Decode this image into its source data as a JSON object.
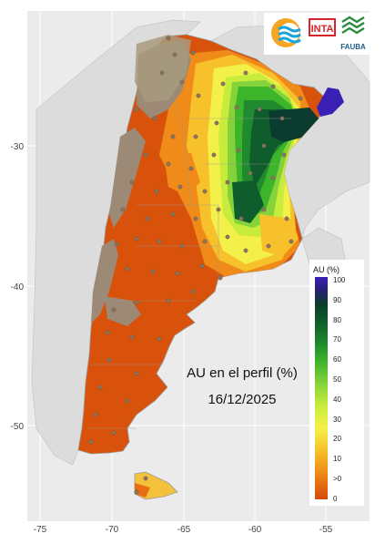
{
  "title": "AU en el perfil (%)",
  "date": "16/12/2025",
  "x_ticks": [
    "-75",
    "-70",
    "-65",
    "-60",
    "-55"
  ],
  "y_ticks": [
    "-30",
    "-40",
    "-50"
  ],
  "legend": {
    "title": "AU (%)",
    "ticks": [
      "100",
      "90",
      "80",
      "70",
      "60",
      "50",
      "40",
      "30",
      "20",
      "10",
      ">0",
      "0"
    ],
    "colors": [
      "#3a1fb5",
      "#0b3b2e",
      "#0f5c2c",
      "#1f8a2e",
      "#3db52a",
      "#86d23a",
      "#c8ec3c",
      "#f4f04a",
      "#f6c12a",
      "#f08a18",
      "#e25c10",
      "#d54a08"
    ]
  },
  "logos": {
    "inta_label": "INTA",
    "fauba_label": "FAUBA"
  },
  "colors": {
    "background": "#ebebeb",
    "grid": "#ffffff",
    "dry": "#d9520c",
    "no_data": "#9c8a77"
  }
}
